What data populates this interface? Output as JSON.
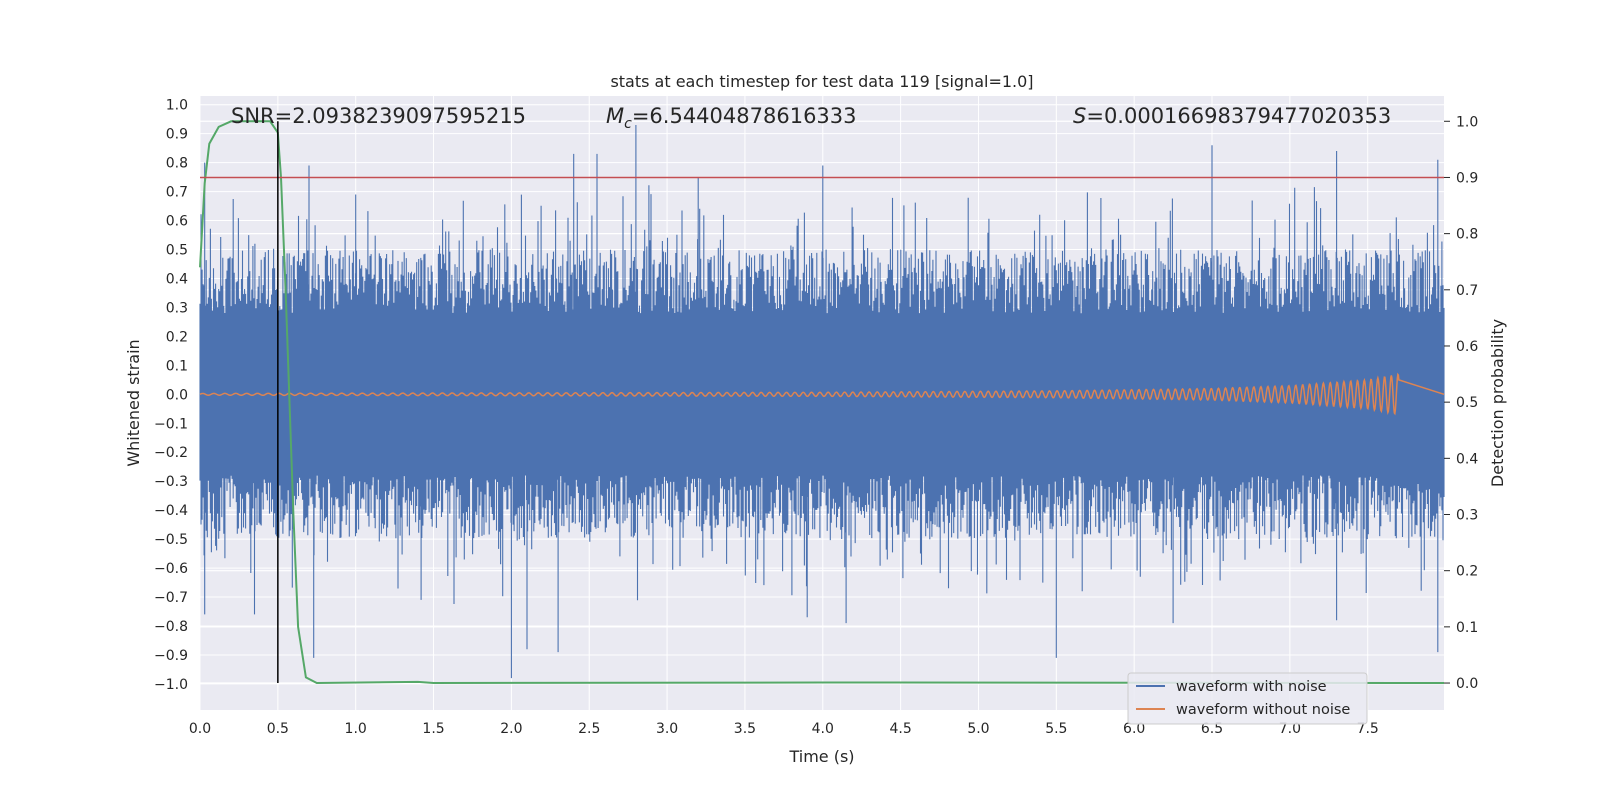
{
  "chart_data": {
    "type": "line",
    "title": "stats at each timestep for test data 119 [signal=1.0]",
    "xlabel": "Time (s)",
    "ylabel": "Whitened strain",
    "ylabel_right": "Detection probability",
    "xlim": [
      0.0,
      7.99
    ],
    "ylim": [
      -1.09,
      1.03
    ],
    "ylim_right": [
      -0.048,
      1.045
    ],
    "x_ticks": [
      "0.0",
      "0.5",
      "1.0",
      "1.5",
      "2.0",
      "2.5",
      "3.0",
      "3.5",
      "4.0",
      "4.5",
      "5.0",
      "5.5",
      "6.0",
      "6.5",
      "7.0",
      "7.5"
    ],
    "y_ticks": [
      "1.0",
      "0.9",
      "0.8",
      "0.7",
      "0.6",
      "0.5",
      "0.4",
      "0.3",
      "0.2",
      "0.1",
      "0.0",
      "−0.1",
      "−0.2",
      "−0.3",
      "−0.4",
      "−0.5",
      "−0.6",
      "−0.7",
      "−0.8",
      "−0.9",
      "−1.0"
    ],
    "y_right_ticks": [
      "1.0",
      "0.9",
      "0.8",
      "0.7",
      "0.6",
      "0.5",
      "0.4",
      "0.3",
      "0.2",
      "0.1",
      "0.0"
    ],
    "annotations": {
      "snr": "SNR=2.0938239097595215",
      "mc_symbol": "M",
      "mc_sub": "c",
      "mc_value": "=6.54404878616333",
      "s_symbol": "S",
      "s_value": "=0.00016698379477020353"
    },
    "series": [
      {
        "name": "waveform with noise",
        "color": "#4c72b0",
        "axis": "left",
        "description_values": {
          "peak_spikes": [
            [
              0.03,
              0.8
            ],
            [
              0.7,
              0.79
            ],
            [
              1.0,
              0.69
            ],
            [
              2.4,
              0.83
            ],
            [
              2.55,
              0.83
            ],
            [
              2.8,
              0.93
            ],
            [
              3.2,
              0.75
            ],
            [
              4.0,
              0.79
            ],
            [
              6.5,
              0.86
            ],
            [
              7.3,
              0.84
            ],
            [
              7.95,
              0.81
            ]
          ],
          "trough_spikes": [
            [
              0.03,
              -0.76
            ],
            [
              0.35,
              -0.76
            ],
            [
              0.73,
              -0.91
            ],
            [
              1.42,
              -0.71
            ],
            [
              2.0,
              -0.98
            ],
            [
              2.1,
              -0.88
            ],
            [
              2.3,
              -0.89
            ],
            [
              3.9,
              -0.77
            ],
            [
              4.15,
              -0.79
            ],
            [
              5.5,
              -0.91
            ],
            [
              6.25,
              -0.79
            ],
            [
              7.3,
              -0.78
            ],
            [
              7.95,
              -0.89
            ]
          ]
        }
      },
      {
        "name": "waveform without noise",
        "color": "#dd8452",
        "axis": "left",
        "points": [
          [
            0.0,
            0.003
          ],
          [
            2.0,
            0.005
          ],
          [
            4.0,
            0.007
          ],
          [
            5.5,
            0.012
          ],
          [
            6.5,
            0.02
          ],
          [
            7.0,
            0.03
          ],
          [
            7.5,
            0.05
          ],
          [
            7.7,
            0.07
          ],
          [
            7.72,
            0.0
          ],
          [
            7.99,
            0.0
          ]
        ]
      },
      {
        "name": "detection probability",
        "color": "#55a868",
        "axis": "right",
        "points": [
          [
            0.0,
            0.74
          ],
          [
            0.03,
            0.89
          ],
          [
            0.06,
            0.96
          ],
          [
            0.12,
            0.99
          ],
          [
            0.2,
            1.0
          ],
          [
            0.45,
            1.0
          ],
          [
            0.5,
            0.98
          ],
          [
            0.52,
            0.9
          ],
          [
            0.55,
            0.7
          ],
          [
            0.6,
            0.3
          ],
          [
            0.63,
            0.1
          ],
          [
            0.68,
            0.01
          ],
          [
            0.75,
            0.0
          ],
          [
            1.4,
            0.002
          ],
          [
            1.5,
            0.0
          ],
          [
            4.0,
            0.001
          ],
          [
            7.99,
            0.0
          ]
        ]
      }
    ],
    "threshold_line": {
      "value": 0.9,
      "axis": "right",
      "color": "#c44e52"
    },
    "detection_marker": {
      "x": 0.5,
      "color": "#000000"
    },
    "legend": {
      "position": "lower-right",
      "entries": [
        {
          "label": "waveform with noise",
          "color": "#4c72b0"
        },
        {
          "label": "waveform without noise",
          "color": "#dd8452"
        }
      ]
    }
  }
}
